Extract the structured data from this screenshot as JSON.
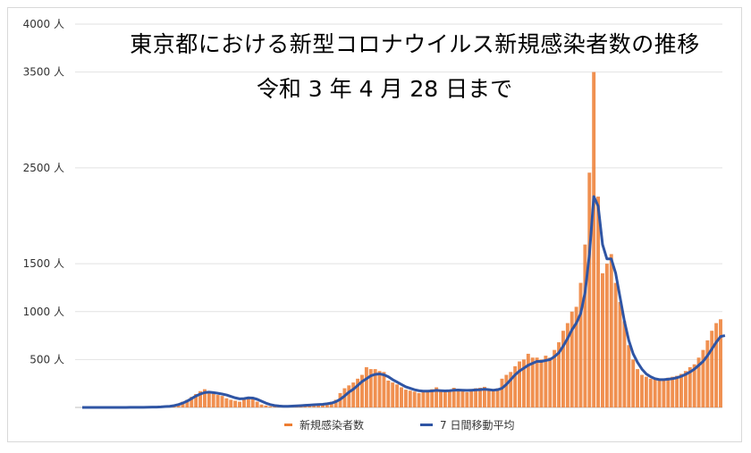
{
  "chart_data": {
    "type": "bar",
    "title": "東京都における新型コロナウイルス新規感染者数の推移",
    "subtitle": "令和 3 年 4 月 28 日まで",
    "ylim": [
      0,
      4000
    ],
    "y_ticks": [
      "",
      "500 人",
      "1000 人",
      "1500 人",
      "2500 人",
      "3500 人",
      "4000 人"
    ],
    "y_tick_values": [
      0,
      500,
      1000,
      1500,
      2500,
      3500,
      4000
    ],
    "grid": true,
    "legend_position": "bottom",
    "series": [
      {
        "name": "新規感染者数",
        "kind": "bar",
        "color": "#ed7d31",
        "values": [
          0,
          0,
          0,
          0,
          0,
          1,
          0,
          0,
          0,
          0,
          0,
          1,
          1,
          2,
          1,
          2,
          3,
          5,
          8,
          12,
          14,
          25,
          40,
          60,
          80,
          110,
          140,
          170,
          190,
          165,
          150,
          130,
          120,
          95,
          80,
          70,
          60,
          90,
          110,
          95,
          60,
          30,
          20,
          12,
          8,
          8,
          10,
          10,
          14,
          15,
          20,
          25,
          30,
          30,
          25,
          40,
          45,
          60,
          80,
          150,
          200,
          230,
          260,
          300,
          340,
          420,
          400,
          400,
          380,
          370,
          280,
          260,
          240,
          210,
          185,
          175,
          165,
          150,
          170,
          180,
          190,
          210,
          175,
          160,
          175,
          205,
          185,
          170,
          160,
          185,
          200,
          205,
          215,
          180,
          170,
          200,
          300,
          340,
          370,
          430,
          480,
          500,
          560,
          520,
          520,
          500,
          540,
          520,
          600,
          680,
          800,
          880,
          1000,
          1050,
          1300,
          1700,
          2450,
          3500,
          2200,
          1400,
          1500,
          1600,
          1300,
          1100,
          900,
          650,
          500,
          400,
          340,
          320,
          300,
          300,
          290,
          300,
          310,
          320,
          330,
          350,
          380,
          420,
          450,
          520,
          600,
          700,
          800,
          880,
          920
        ]
      },
      {
        "name": "7 日間移動平均",
        "kind": "line",
        "color": "#2f55a4",
        "values": [
          0,
          0,
          0,
          0,
          0,
          0,
          0,
          0,
          0,
          0,
          0,
          1,
          1,
          1,
          1,
          2,
          3,
          4,
          6,
          9,
          12,
          19,
          30,
          46,
          66,
          93,
          119,
          140,
          155,
          160,
          155,
          148,
          140,
          130,
          115,
          100,
          90,
          92,
          100,
          98,
          85,
          65,
          45,
          30,
          20,
          15,
          12,
          12,
          14,
          16,
          19,
          22,
          25,
          28,
          30,
          33,
          38,
          45,
          60,
          85,
          120,
          160,
          190,
          230,
          270,
          300,
          330,
          345,
          350,
          340,
          320,
          290,
          265,
          240,
          215,
          200,
          185,
          175,
          170,
          170,
          172,
          178,
          175,
          172,
          175,
          180,
          182,
          180,
          178,
          180,
          183,
          185,
          190,
          185,
          180,
          185,
          200,
          240,
          290,
          340,
          380,
          410,
          440,
          460,
          480,
          480,
          490,
          500,
          530,
          570,
          640,
          720,
          810,
          880,
          980,
          1200,
          1600,
          2200,
          2100,
          1700,
          1550,
          1550,
          1400,
          1150,
          900,
          700,
          560,
          470,
          400,
          350,
          320,
          300,
          290,
          290,
          295,
          300,
          310,
          325,
          345,
          370,
          400,
          440,
          480,
          540,
          610,
          680,
          740,
          750
        ]
      }
    ]
  }
}
